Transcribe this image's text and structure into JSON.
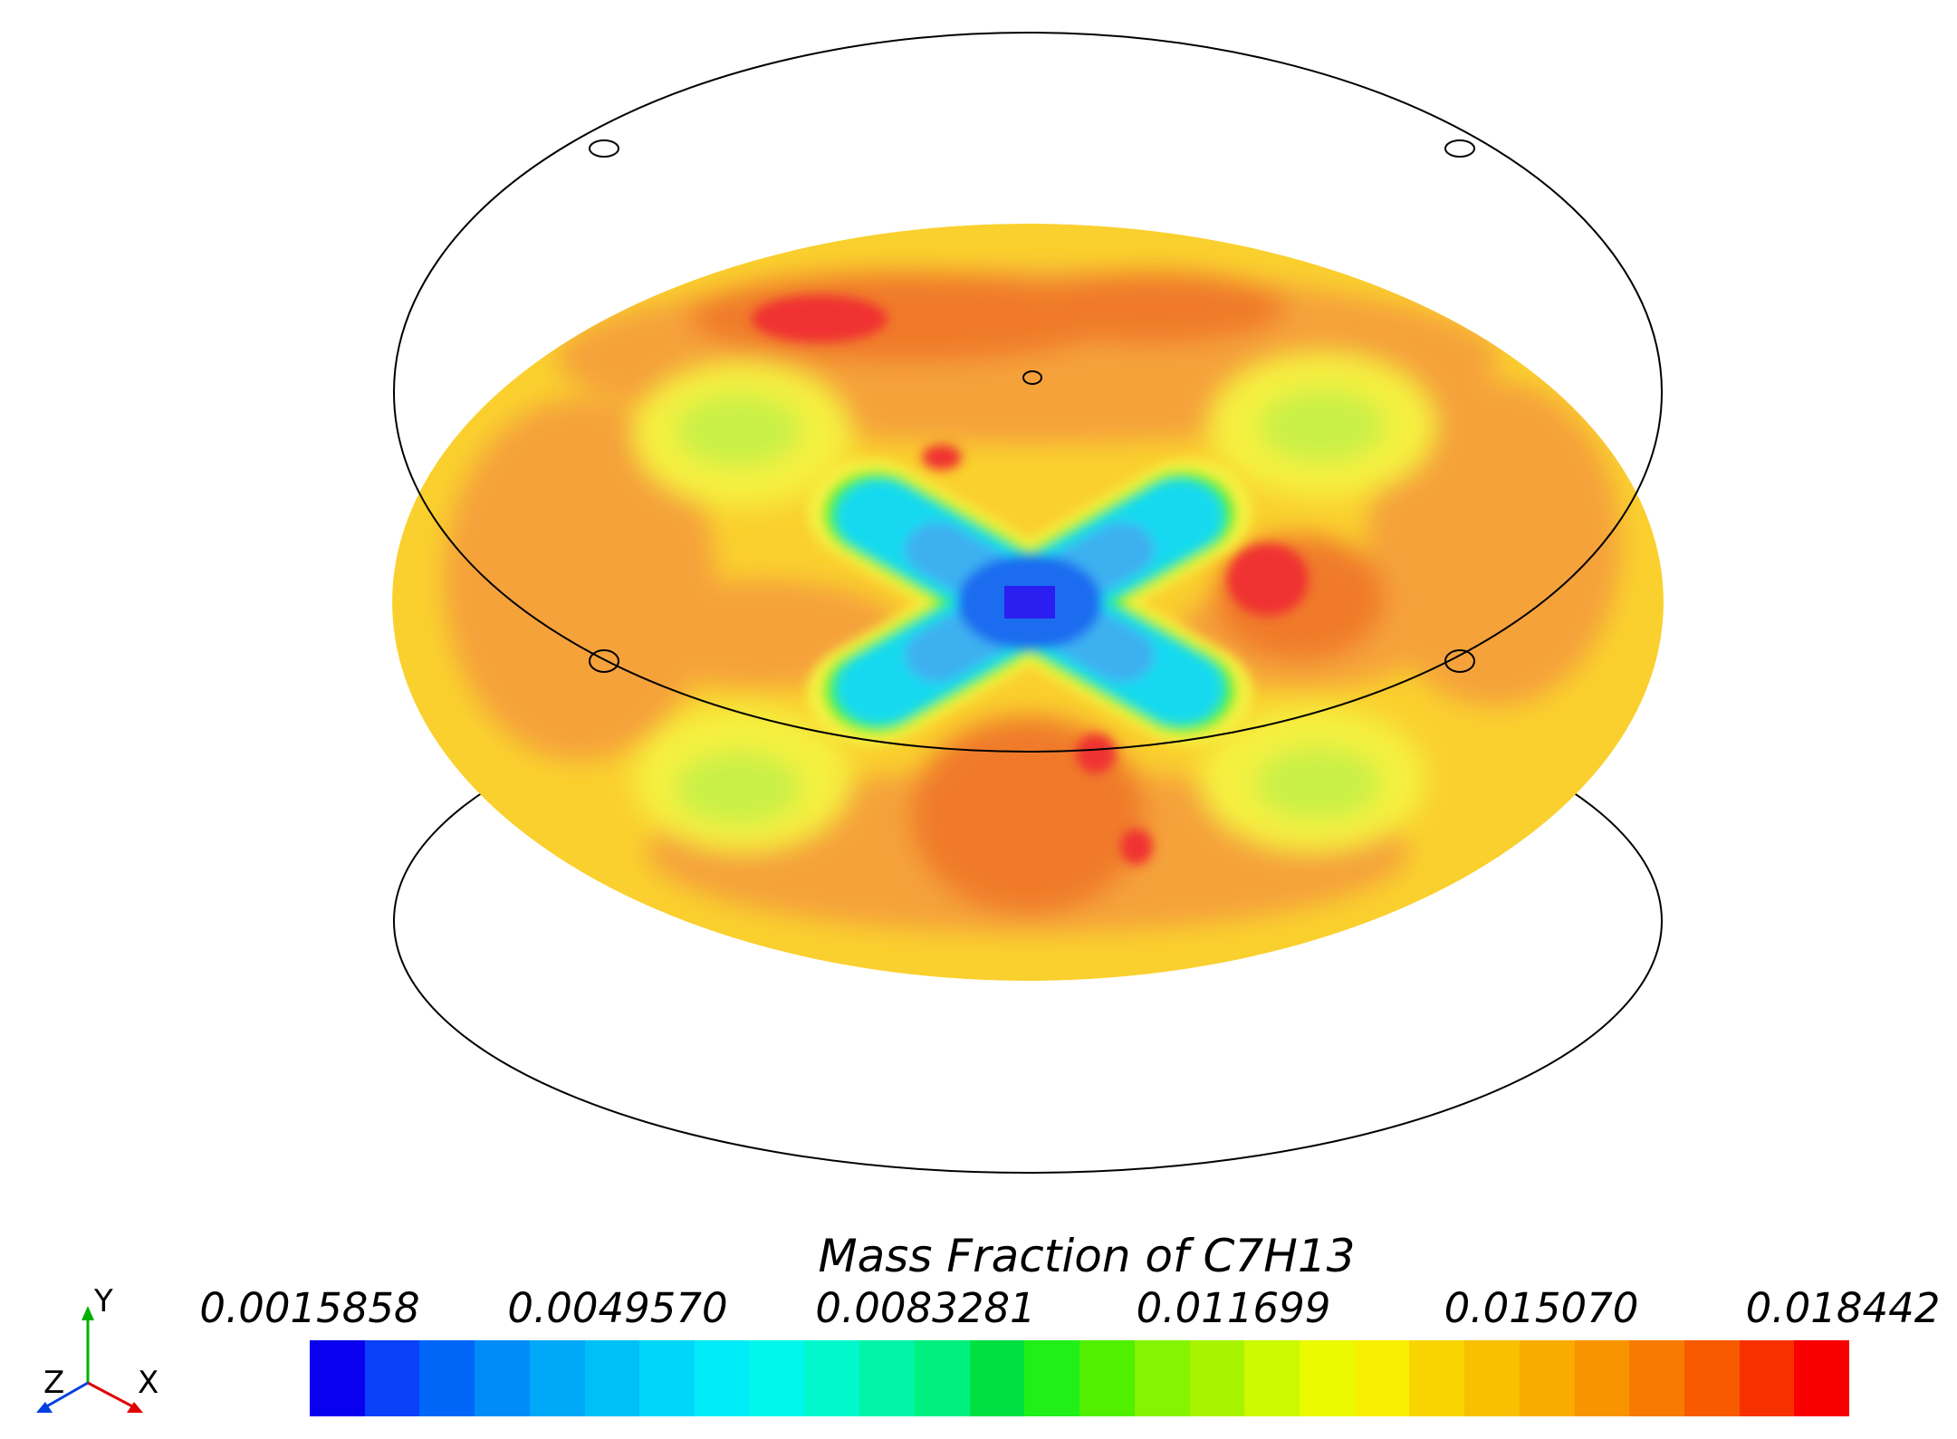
{
  "legend": {
    "title": "Mass Fraction of C7H13",
    "ticks": [
      "0.0015858",
      "0.0049570",
      "0.0083281",
      "0.011699",
      "0.015070",
      "0.018442"
    ],
    "min": 0.0015858,
    "max": 0.018442,
    "palette": [
      "#0a00f0",
      "#0a40f8",
      "#0066f8",
      "#008cf8",
      "#00a8f8",
      "#00c0f8",
      "#00d6f8",
      "#00ecf8",
      "#00f8ec",
      "#00f8cc",
      "#00f4a8",
      "#00f080",
      "#00e040",
      "#20f018",
      "#50f000",
      "#84f400",
      "#a8f400",
      "#ccf800",
      "#ecfa00",
      "#f8f000",
      "#f8d400",
      "#f8c000",
      "#f8ac00",
      "#f89400",
      "#f87a00",
      "#f85a00",
      "#f83000",
      "#f80000"
    ]
  },
  "axes": {
    "x_label": "X",
    "y_label": "Y",
    "z_label": "Z",
    "x_color": "#e00000",
    "y_color": "#00b000",
    "z_color": "#0040e0"
  },
  "contour_colors": {
    "base": "#fad02e",
    "orange": "#f5a23a",
    "dark_orange": "#f07a2a",
    "red": "#f03030",
    "yellow": "#f5f040",
    "light_green": "#c8f046",
    "green": "#3cf03c",
    "cyan": "#17d9f0",
    "light_blue": "#3cb0f0",
    "blue": "#1e6cf0",
    "deep_blue": "#2a1ef0"
  }
}
